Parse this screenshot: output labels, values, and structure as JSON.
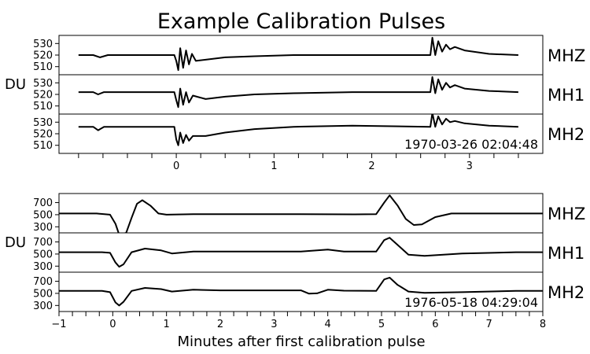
{
  "chart_data": {
    "title": "Example Calibration Pulses",
    "xlabel": "Minutes after first calibration pulse",
    "ylabel": "DU",
    "charts": [
      {
        "type": "line",
        "timestamp": "1970-03-26 02:04:48",
        "xlim": [
          -1.2,
          3.75
        ],
        "xticks_major": [
          0,
          1,
          2,
          3
        ],
        "xtick_labels": [
          "0",
          "1",
          "2",
          "3"
        ],
        "xticks_minor": [
          -1,
          -0.75,
          -0.5,
          -0.25,
          0.25,
          0.5,
          0.75,
          1.25,
          1.5,
          1.75,
          2.25,
          2.5,
          2.75,
          3.25,
          3.5
        ],
        "xtick_minor_labels": false,
        "ylim": [
          503,
          537
        ],
        "yticks": [
          510,
          520,
          530
        ],
        "data_span": [
          -1,
          3.5
        ],
        "series": [
          {
            "name": "MHZ",
            "points": [
              [
                -1.0,
                520
              ],
              [
                -0.85,
                520
              ],
              [
                -0.78,
                518
              ],
              [
                -0.7,
                520
              ],
              [
                -0.02,
                520
              ],
              [
                0.0,
                515
              ],
              [
                0.02,
                507
              ],
              [
                0.04,
                526
              ],
              [
                0.07,
                509
              ],
              [
                0.1,
                524
              ],
              [
                0.13,
                512
              ],
              [
                0.16,
                521
              ],
              [
                0.2,
                515
              ],
              [
                0.3,
                516
              ],
              [
                0.5,
                518
              ],
              [
                0.8,
                519
              ],
              [
                1.2,
                520
              ],
              [
                2.6,
                520
              ],
              [
                2.62,
                535
              ],
              [
                2.65,
                520
              ],
              [
                2.68,
                532
              ],
              [
                2.72,
                523
              ],
              [
                2.76,
                529
              ],
              [
                2.8,
                525
              ],
              [
                2.85,
                527
              ],
              [
                2.95,
                524
              ],
              [
                3.2,
                521
              ],
              [
                3.5,
                520
              ]
            ]
          },
          {
            "name": "MH1",
            "points": [
              [
                -1.0,
                522
              ],
              [
                -0.85,
                522
              ],
              [
                -0.8,
                520
              ],
              [
                -0.74,
                522
              ],
              [
                -0.02,
                522
              ],
              [
                0.0,
                515
              ],
              [
                0.02,
                509
              ],
              [
                0.04,
                525
              ],
              [
                0.07,
                511
              ],
              [
                0.1,
                522
              ],
              [
                0.13,
                513
              ],
              [
                0.17,
                519
              ],
              [
                0.3,
                516
              ],
              [
                0.5,
                518
              ],
              [
                0.8,
                520
              ],
              [
                1.2,
                521
              ],
              [
                1.8,
                522
              ],
              [
                2.6,
                522
              ],
              [
                2.62,
                535
              ],
              [
                2.65,
                521
              ],
              [
                2.68,
                533
              ],
              [
                2.72,
                524
              ],
              [
                2.76,
                530
              ],
              [
                2.8,
                526
              ],
              [
                2.85,
                528
              ],
              [
                2.95,
                525
              ],
              [
                3.2,
                523
              ],
              [
                3.5,
                522
              ]
            ]
          },
          {
            "name": "MH2",
            "points": [
              [
                -1.0,
                526
              ],
              [
                -0.85,
                526
              ],
              [
                -0.8,
                523
              ],
              [
                -0.74,
                526
              ],
              [
                -0.02,
                526
              ],
              [
                0.0,
                515
              ],
              [
                0.02,
                510
              ],
              [
                0.04,
                521
              ],
              [
                0.07,
                512
              ],
              [
                0.1,
                519
              ],
              [
                0.13,
                514
              ],
              [
                0.17,
                518
              ],
              [
                0.3,
                518
              ],
              [
                0.5,
                521
              ],
              [
                0.8,
                524
              ],
              [
                1.2,
                526
              ],
              [
                1.8,
                527
              ],
              [
                2.6,
                526
              ],
              [
                2.62,
                538
              ],
              [
                2.65,
                526
              ],
              [
                2.68,
                535
              ],
              [
                2.72,
                528
              ],
              [
                2.76,
                533
              ],
              [
                2.8,
                530
              ],
              [
                2.85,
                531
              ],
              [
                2.95,
                529
              ],
              [
                3.2,
                527
              ],
              [
                3.5,
                526
              ]
            ]
          }
        ]
      },
      {
        "type": "line",
        "timestamp": "1976-05-18 04:29:04",
        "xlim": [
          -1,
          8
        ],
        "xticks_major": [
          -1,
          0,
          1,
          2,
          3,
          4,
          5,
          6,
          7,
          8
        ],
        "xtick_labels": [
          "−1",
          "0",
          "1",
          "2",
          "3",
          "4",
          "5",
          "6",
          "7",
          "8"
        ],
        "xticks_minor": [
          -0.75,
          -0.5,
          -0.25,
          0.25,
          0.5,
          0.75,
          1.25,
          1.5,
          1.75,
          2.25,
          2.5,
          2.75,
          3.25,
          3.5,
          3.75,
          4.25,
          4.5,
          4.75,
          5.25,
          5.5,
          5.75,
          6.25,
          6.5,
          6.75,
          7.25,
          7.5,
          7.75
        ],
        "xtick_minor_labels": false,
        "ylim": [
          200,
          850
        ],
        "yticks": [
          300,
          500,
          700
        ],
        "data_span": [
          -1,
          8
        ],
        "series": [
          {
            "name": "MHZ",
            "points": [
              [
                -1.0,
                520
              ],
              [
                -0.3,
                520
              ],
              [
                -0.05,
                500
              ],
              [
                0.05,
                350
              ],
              [
                0.12,
                170
              ],
              [
                0.25,
                200
              ],
              [
                0.35,
                450
              ],
              [
                0.45,
                680
              ],
              [
                0.55,
                740
              ],
              [
                0.7,
                650
              ],
              [
                0.85,
                520
              ],
              [
                1.0,
                500
              ],
              [
                1.5,
                510
              ],
              [
                3.0,
                510
              ],
              [
                4.5,
                505
              ],
              [
                4.9,
                510
              ],
              [
                5.05,
                700
              ],
              [
                5.15,
                820
              ],
              [
                5.3,
                650
              ],
              [
                5.45,
                430
              ],
              [
                5.6,
                330
              ],
              [
                5.75,
                340
              ],
              [
                6.0,
                460
              ],
              [
                6.3,
                520
              ],
              [
                7.0,
                520
              ],
              [
                8.0,
                520
              ]
            ]
          },
          {
            "name": "MH1",
            "points": [
              [
                -1.0,
                530
              ],
              [
                -0.2,
                530
              ],
              [
                -0.05,
                520
              ],
              [
                0.05,
                360
              ],
              [
                0.12,
                290
              ],
              [
                0.2,
                330
              ],
              [
                0.35,
                530
              ],
              [
                0.6,
                590
              ],
              [
                0.9,
                560
              ],
              [
                1.1,
                510
              ],
              [
                1.5,
                540
              ],
              [
                2.0,
                540
              ],
              [
                3.5,
                540
              ],
              [
                4.0,
                575
              ],
              [
                4.3,
                540
              ],
              [
                4.9,
                540
              ],
              [
                5.05,
                730
              ],
              [
                5.15,
                770
              ],
              [
                5.3,
                650
              ],
              [
                5.5,
                490
              ],
              [
                5.8,
                470
              ],
              [
                6.5,
                510
              ],
              [
                7.5,
                530
              ],
              [
                8.0,
                530
              ]
            ]
          },
          {
            "name": "MH2",
            "points": [
              [
                -1.0,
                540
              ],
              [
                -0.2,
                540
              ],
              [
                -0.05,
                520
              ],
              [
                0.05,
                350
              ],
              [
                0.12,
                300
              ],
              [
                0.2,
                360
              ],
              [
                0.35,
                540
              ],
              [
                0.6,
                590
              ],
              [
                0.9,
                570
              ],
              [
                1.1,
                530
              ],
              [
                1.5,
                560
              ],
              [
                2.0,
                550
              ],
              [
                3.5,
                550
              ],
              [
                3.65,
                495
              ],
              [
                3.8,
                500
              ],
              [
                4.0,
                560
              ],
              [
                4.3,
                545
              ],
              [
                4.9,
                540
              ],
              [
                5.05,
                730
              ],
              [
                5.15,
                760
              ],
              [
                5.3,
                640
              ],
              [
                5.5,
                530
              ],
              [
                5.8,
                510
              ],
              [
                6.5,
                520
              ],
              [
                7.5,
                540
              ],
              [
                8.0,
                540
              ]
            ]
          }
        ]
      }
    ]
  }
}
